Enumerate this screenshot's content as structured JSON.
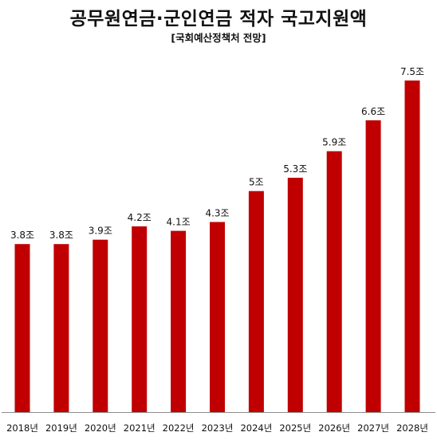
{
  "chart_data": {
    "type": "bar",
    "title": "공무원연금·군인연금 적자 국고지원액",
    "subtitle": "[국회예산정책처 전망]",
    "categories": [
      "2018년",
      "2019년",
      "2020년",
      "2021년",
      "2022년",
      "2023년",
      "2024년",
      "2025년",
      "2026년",
      "2027년",
      "2028년"
    ],
    "values": [
      3.8,
      3.8,
      3.9,
      4.2,
      4.1,
      4.3,
      5,
      5.3,
      5.9,
      6.6,
      7.5
    ],
    "value_labels": [
      "3.8조",
      "3.8조",
      "3.9조",
      "4.2조",
      "4.1조",
      "4.3조",
      "5조",
      "5.3조",
      "5.9조",
      "6.6조",
      "7.5조"
    ],
    "unit": "조",
    "ylim": [
      0,
      7.5
    ],
    "bar_color": "#c00000",
    "grid": false,
    "legend": "none"
  }
}
